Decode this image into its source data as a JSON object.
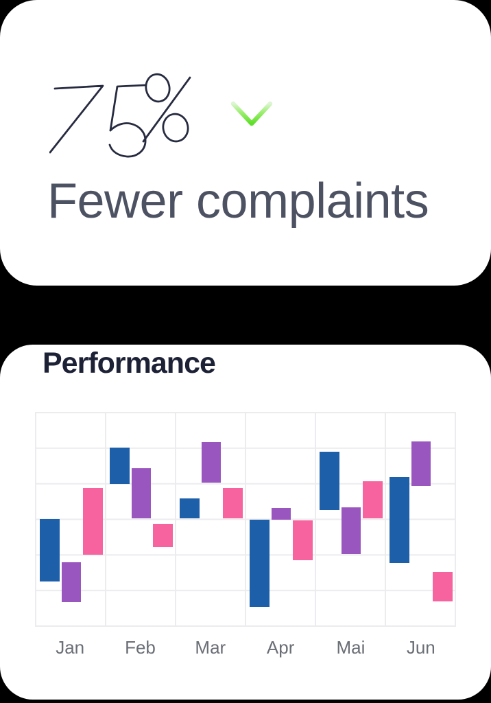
{
  "stat_card": {
    "value": "75%",
    "label": "Fewer complaints",
    "trend_icon": "arrow-down-icon",
    "value_color": "#272b40",
    "label_color": "#4d5263",
    "arrow_gradient_top": "#ddf6d2",
    "arrow_gradient_bottom": "#5fdf28"
  },
  "performance_card": {
    "title": "Performance",
    "title_color": "#1d2136"
  },
  "chart_data": {
    "type": "floating-bar",
    "title": "Performance",
    "categories": [
      "Jan",
      "Feb",
      "Mar",
      "Apr",
      "Mai",
      "Jun"
    ],
    "series": [
      {
        "name": "blue",
        "color": "#1d5fa9",
        "ranges": [
          [
            1.23,
            2.99
          ],
          [
            3.97,
            4.99
          ],
          [
            3.0,
            3.56
          ],
          [
            0.53,
            2.98
          ],
          [
            3.24,
            4.88
          ],
          [
            1.76,
            4.17
          ]
        ]
      },
      {
        "name": "purple",
        "color": "#9a56bf",
        "ranges": [
          [
            0.66,
            1.77
          ],
          [
            3.0,
            4.41
          ],
          [
            4.02,
            5.16
          ],
          [
            2.97,
            3.3
          ],
          [
            2.01,
            3.31
          ],
          [
            3.92,
            5.17
          ]
        ]
      },
      {
        "name": "pink",
        "color": "#f6639e",
        "ranges": [
          [
            1.99,
            3.86
          ],
          [
            2.19,
            2.86
          ],
          [
            3.01,
            3.86
          ],
          [
            1.83,
            2.95
          ],
          [
            3.0,
            4.05
          ],
          [
            0.68,
            1.5
          ]
        ]
      }
    ],
    "xlabel": "",
    "ylabel": "",
    "ylim": [
      0,
      6
    ],
    "grid": true,
    "legend": false,
    "axis_label_color": "#6a6e75",
    "grid_color": "#ececef"
  }
}
